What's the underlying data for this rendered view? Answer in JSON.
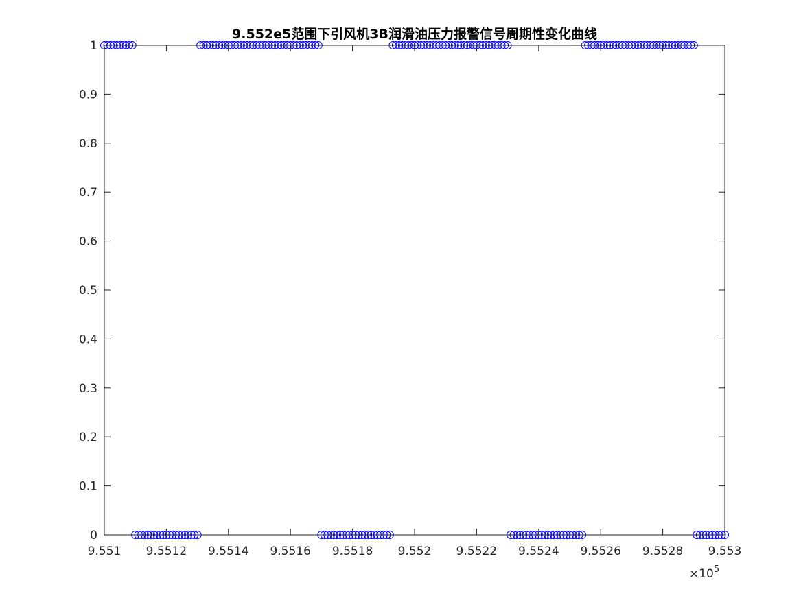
{
  "chart_data": {
    "type": "scatter",
    "title": "9.552e5范围下引风机3B润滑油压力报警信号周期性变化曲线",
    "xlabel": "",
    "ylabel": "",
    "xlim": [
      955100,
      955300
    ],
    "ylim": [
      0,
      1
    ],
    "x_scale_note": {
      "times": "×10",
      "exponent": "5"
    },
    "x_ticks": [
      955100,
      955120,
      955140,
      955160,
      955180,
      955200,
      955220,
      955240,
      955260,
      955280,
      955300
    ],
    "x_tick_labels": [
      "9.551",
      "9.5512",
      "9.5514",
      "9.5516",
      "9.5518",
      "9.552",
      "9.5522",
      "9.5524",
      "9.5526",
      "9.5528",
      "9.553"
    ],
    "y_ticks": [
      0,
      0.1,
      0.2,
      0.3,
      0.4,
      0.5,
      0.6,
      0.7,
      0.8,
      0.9,
      1
    ],
    "y_tick_labels": [
      "0",
      "0.1",
      "0.2",
      "0.3",
      "0.4",
      "0.5",
      "0.6",
      "0.7",
      "0.8",
      "0.9",
      "1"
    ],
    "grid": false,
    "marker": "circle",
    "marker_color": "#0000ff",
    "segments": [
      {
        "x_start": 955100,
        "x_end": 955109,
        "y": 1
      },
      {
        "x_start": 955110,
        "x_end": 955130,
        "y": 0
      },
      {
        "x_start": 955131,
        "x_end": 955169,
        "y": 1
      },
      {
        "x_start": 955170,
        "x_end": 955192,
        "y": 0
      },
      {
        "x_start": 955193,
        "x_end": 955230,
        "y": 1
      },
      {
        "x_start": 955231,
        "x_end": 955254,
        "y": 0
      },
      {
        "x_start": 955255,
        "x_end": 955290,
        "y": 1
      },
      {
        "x_start": 955291,
        "x_end": 955300,
        "y": 0
      }
    ]
  }
}
